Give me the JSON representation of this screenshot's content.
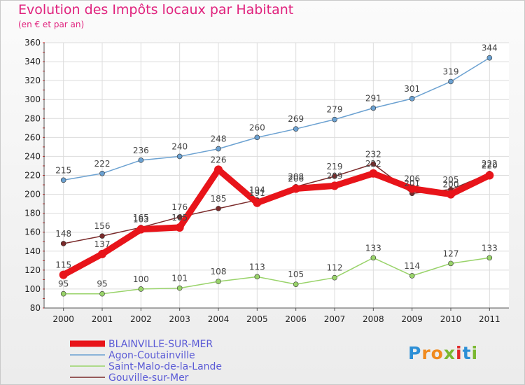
{
  "chart_data": {
    "type": "line",
    "title": "Evolution des Impôts locaux par Habitant",
    "subtitle": "(en € et par an)",
    "x": [
      "2000",
      "2001",
      "2002",
      "2003",
      "2004",
      "2005",
      "2006",
      "2007",
      "2008",
      "2009",
      "2010",
      "2011"
    ],
    "ylim": [
      80,
      360
    ],
    "yticks": [
      80,
      100,
      120,
      140,
      160,
      180,
      200,
      220,
      240,
      260,
      280,
      300,
      320,
      340,
      360
    ],
    "grid": true,
    "legend_position": "bottom-left",
    "series": [
      {
        "name": "BLAINVILLE-SUR-MER",
        "color": "#e8141a",
        "values": [
          115,
          137,
          163,
          165,
          226,
          191,
          206,
          209,
          222,
          206,
          200,
          220
        ]
      },
      {
        "name": "Agon-Coutainville",
        "color": "#6ba1d1",
        "values": [
          215,
          222,
          236,
          240,
          248,
          260,
          269,
          279,
          291,
          301,
          319,
          344
        ]
      },
      {
        "name": "Saint-Malo-de-la-Lande",
        "color": "#99d36a",
        "values": [
          95,
          95,
          100,
          101,
          108,
          113,
          105,
          112,
          133,
          114,
          127,
          133
        ]
      },
      {
        "name": "Gouville-sur-Mer",
        "color": "#7a2a2a",
        "values": [
          148,
          156,
          165,
          176,
          185,
          194,
          208,
          219,
          232,
          201,
          205,
          222
        ]
      }
    ]
  },
  "logo": {
    "letters": [
      "P",
      "r",
      "o",
      "x",
      "i",
      "t",
      "i"
    ],
    "colors": [
      "#2d8fd6",
      "#f08a1e",
      "#f08a1e",
      "#7ab830",
      "#e02a2a",
      "#2d8fd6",
      "#7ab830"
    ]
  }
}
